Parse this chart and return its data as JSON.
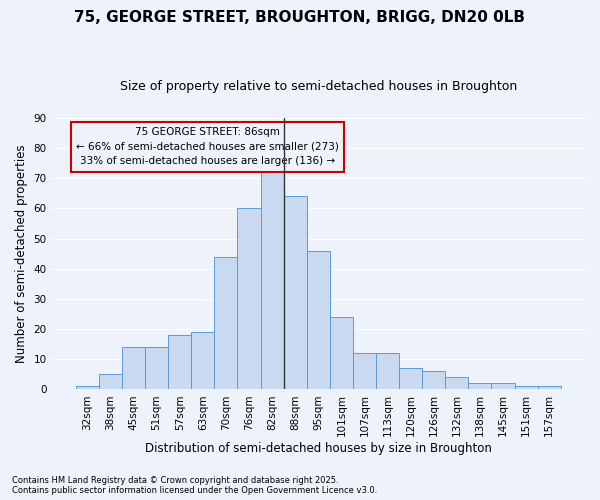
{
  "title1": "75, GEORGE STREET, BROUGHTON, BRIGG, DN20 0LB",
  "title2": "Size of property relative to semi-detached houses in Broughton",
  "xlabel": "Distribution of semi-detached houses by size in Broughton",
  "ylabel": "Number of semi-detached properties",
  "footnote1": "Contains HM Land Registry data © Crown copyright and database right 2025.",
  "footnote2": "Contains public sector information licensed under the Open Government Licence v3.0.",
  "categories": [
    "32sqm",
    "38sqm",
    "45sqm",
    "51sqm",
    "57sqm",
    "63sqm",
    "70sqm",
    "76sqm",
    "82sqm",
    "88sqm",
    "95sqm",
    "101sqm",
    "107sqm",
    "113sqm",
    "120sqm",
    "126sqm",
    "132sqm",
    "138sqm",
    "145sqm",
    "151sqm",
    "157sqm"
  ],
  "bar_values": [
    1,
    5,
    14,
    14,
    18,
    19,
    44,
    60,
    76,
    64,
    46,
    24,
    12,
    12,
    7,
    6,
    4,
    2,
    2,
    1,
    1
  ],
  "highlight_index": 8,
  "bar_color": "#c8d9f0",
  "bar_edge_color": "#5b9bd5",
  "highlight_line_color": "#333333",
  "annotation_box_color": "#cc0000",
  "annotation_line1": "75 GEORGE STREET: 86sqm",
  "annotation_line2": "← 66% of semi-detached houses are smaller (273)",
  "annotation_line3": "33% of semi-detached houses are larger (136) →",
  "annotation_fontsize": 7.5,
  "ylim": [
    0,
    90
  ],
  "yticks": [
    0,
    10,
    20,
    30,
    40,
    50,
    60,
    70,
    80,
    90
  ],
  "bg_color": "#eef2fb",
  "grid_color": "#ffffff",
  "title1_fontsize": 11,
  "title2_fontsize": 9,
  "xlabel_fontsize": 8.5,
  "ylabel_fontsize": 8.5,
  "tick_fontsize": 7.5
}
